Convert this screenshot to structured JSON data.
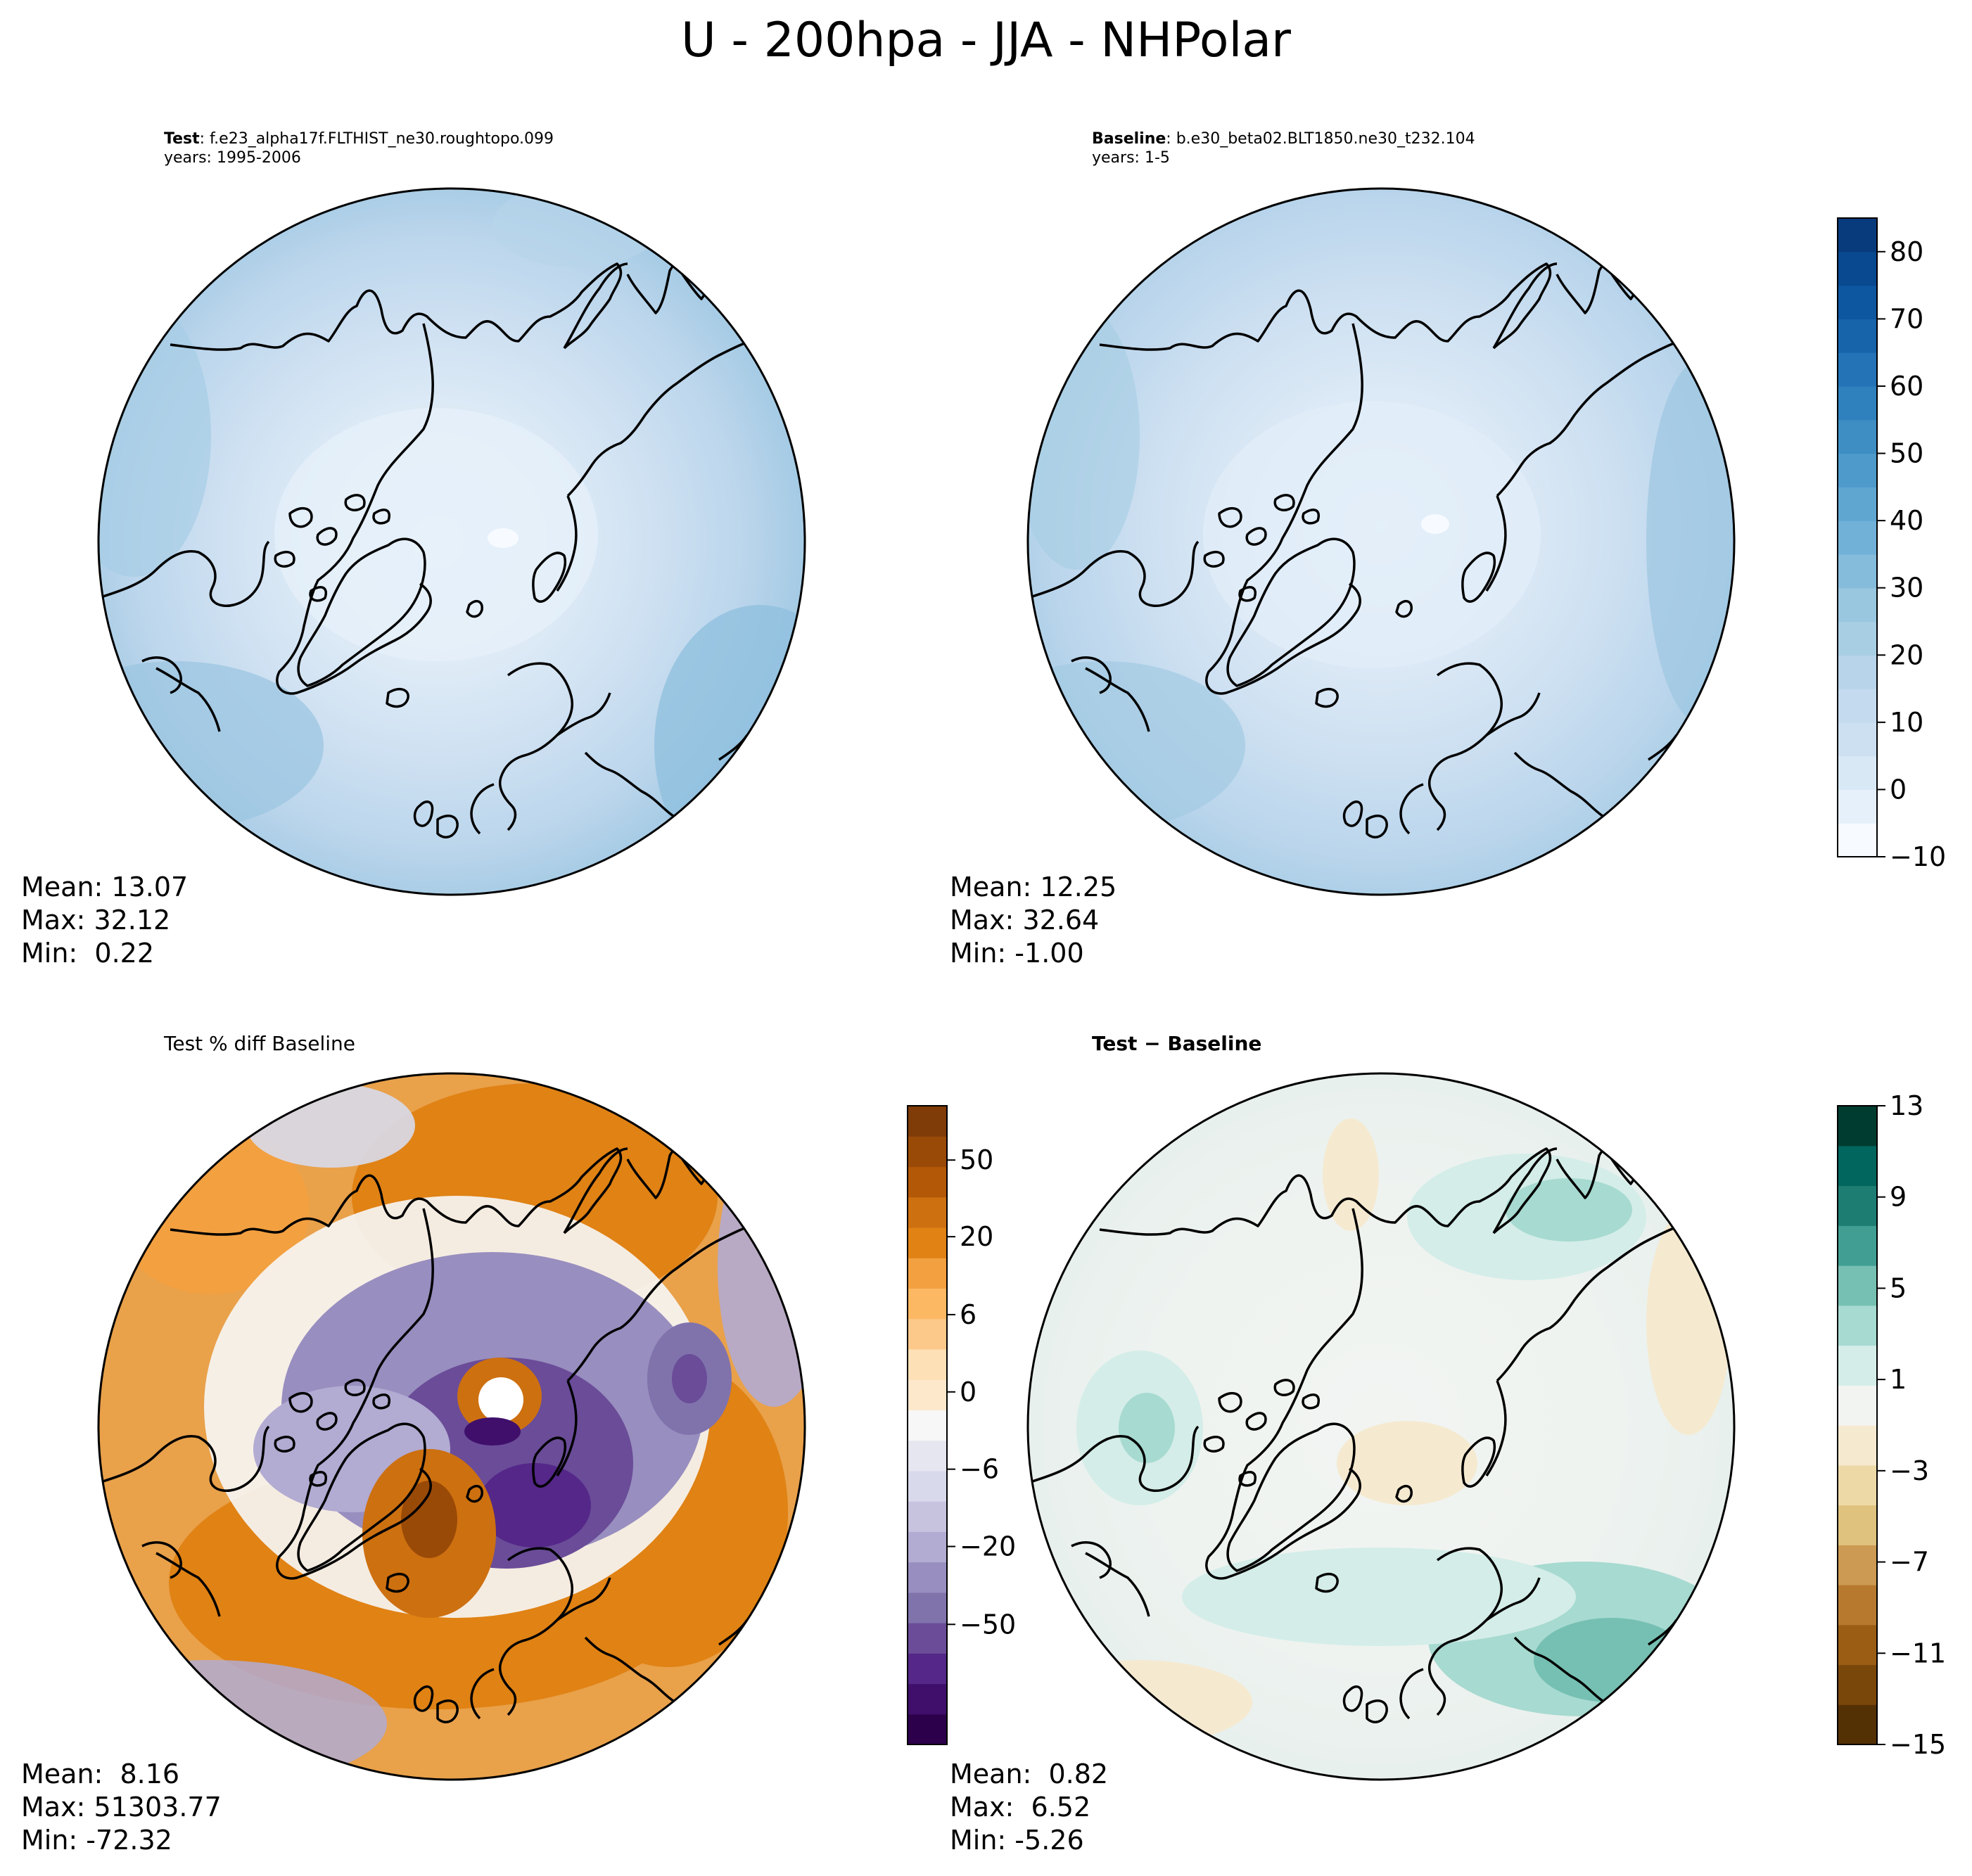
{
  "figure": {
    "title": "U - 200hpa - JJA - NHPolar"
  },
  "panels": {
    "test": {
      "label_bold": "Test",
      "label_rest": ": f.e23_alpha17f.FLTHIST_ne30.roughtopo.099",
      "years": "years: 1995-2006",
      "stats": {
        "mean": "Mean: 13.07",
        "max": "Max: 32.12",
        "min": "Min:  0.22"
      }
    },
    "baseline": {
      "label_bold": "Baseline",
      "label_rest": ": b.e30_beta02.BLT1850.ne30_t232.104",
      "years": "years: 1-5",
      "stats": {
        "mean": "Mean: 12.25",
        "max": "Max: 32.64",
        "min": "Min: -1.00"
      }
    },
    "pct_diff": {
      "title": "Test % diff Baseline",
      "stats": {
        "mean": "Mean:  8.16",
        "max": "Max: 51303.77",
        "min": "Min: -72.32"
      }
    },
    "diff": {
      "title_bold": "Test − Baseline",
      "stats": {
        "mean": "Mean:  0.82",
        "max": "Max:  6.52",
        "min": "Min: -5.26"
      }
    }
  },
  "colorbars": {
    "blues": {
      "levels": [
        -10,
        -5,
        0,
        5,
        10,
        15,
        20,
        25,
        30,
        35,
        40,
        45,
        50,
        55,
        60,
        65,
        70,
        75,
        80,
        85
      ],
      "ticks": [
        "80",
        "70",
        "60",
        "50",
        "40",
        "30",
        "20",
        "10",
        "0",
        "−10"
      ],
      "tick_values": [
        80,
        70,
        60,
        50,
        40,
        30,
        20,
        10,
        0,
        -10
      ],
      "colors": [
        "#f7fbff",
        "#e6f0fa",
        "#d9e8f5",
        "#cde0f1",
        "#c4daee",
        "#b7d4ea",
        "#a8cee4",
        "#99c7e0",
        "#85bcdc",
        "#71b1d7",
        "#5fa6d1",
        "#4e9acb",
        "#3e8ec4",
        "#2f81bd",
        "#2373b6",
        "#1764ab",
        "#0d56a0",
        "#084990",
        "#083b7c"
      ]
    },
    "purple_orange": {
      "ticks": [
        "50",
        "20",
        "6",
        "0",
        "−6",
        "−20",
        "−50"
      ],
      "tick_values": [
        50,
        20,
        6,
        0,
        -6,
        -20,
        -50
      ],
      "colors": [
        "#2d004b",
        "#3f0f6b",
        "#542788",
        "#6a4c98",
        "#8073ac",
        "#988ebf",
        "#b2abd2",
        "#c7c3df",
        "#d8daeb",
        "#e6e6f0",
        "#f7f7f7",
        "#fde8cc",
        "#fee0b6",
        "#fdc98a",
        "#fdb863",
        "#f3a040",
        "#e08214",
        "#cd7010",
        "#b35806",
        "#9a4a07",
        "#7f3b08"
      ]
    },
    "brbg": {
      "ticks": [
        "13",
        "9",
        "5",
        "1",
        "−3",
        "−7",
        "−11",
        "−15"
      ],
      "tick_values": [
        13,
        9,
        5,
        1,
        -3,
        -7,
        -11,
        -15
      ],
      "colors": [
        "#543005",
        "#7a470b",
        "#9b5d14",
        "#b6792e",
        "#cc9a52",
        "#dfc27d",
        "#ecd9a6",
        "#f5ead0",
        "#f2f4f2",
        "#d4ede8",
        "#a7dad1",
        "#76c0b3",
        "#419e92",
        "#1d7d73",
        "#01665e",
        "#003c30"
      ]
    }
  },
  "chart_data": [
    {
      "type": "heatmap",
      "projection": "north-polar-stereographic",
      "title": "Test: f.e23_alpha17f.FLTHIST_ne30.roughtopo.099",
      "subtitle": "years: 1995-2006",
      "colorbar_range": [
        -10,
        85
      ],
      "mean": 13.07,
      "max": 32.12,
      "min": 0.22
    },
    {
      "type": "heatmap",
      "projection": "north-polar-stereographic",
      "title": "Baseline: b.e30_beta02.BLT1850.ne30_t232.104",
      "subtitle": "years: 1-5",
      "colorbar_range": [
        -10,
        85
      ],
      "mean": 12.25,
      "max": 32.64,
      "min": -1.0
    },
    {
      "type": "heatmap",
      "projection": "north-polar-stereographic",
      "title": "Test % diff Baseline",
      "colorbar_ticks": [
        -50,
        -20,
        -6,
        0,
        6,
        20,
        50
      ],
      "mean": 8.16,
      "max": 51303.77,
      "min": -72.32
    },
    {
      "type": "heatmap",
      "projection": "north-polar-stereographic",
      "title": "Test − Baseline",
      "colorbar_range": [
        -15,
        13
      ],
      "colorbar_ticks": [
        -15,
        -11,
        -7,
        -3,
        1,
        5,
        9,
        13
      ],
      "mean": 0.82,
      "max": 6.52,
      "min": -5.26
    }
  ]
}
